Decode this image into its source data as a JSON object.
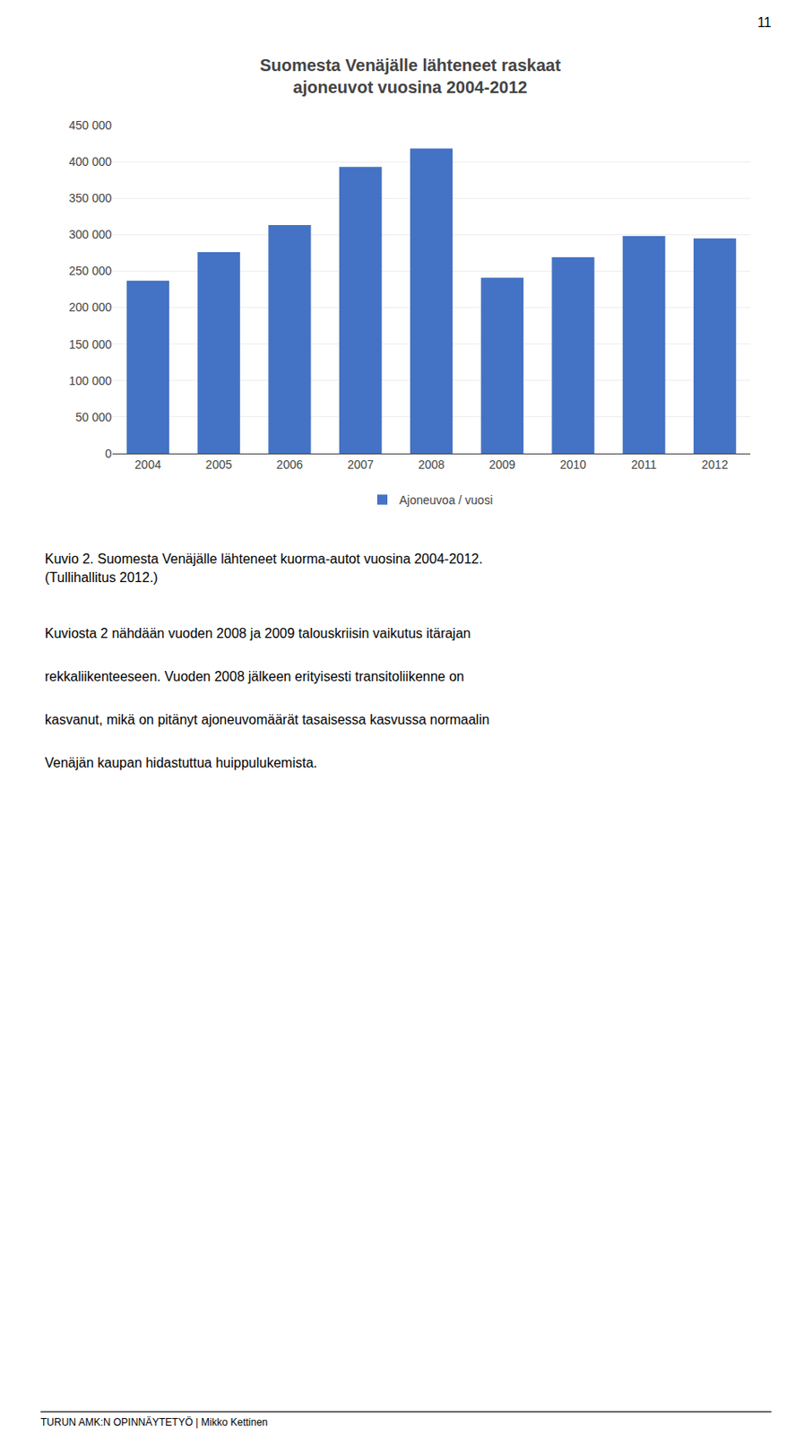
{
  "chart_data": {
    "type": "bar",
    "title": "Suomesta Venäjälle lähteneet raskaat\najoneuvot vuosina 2004-2012",
    "categories": [
      "2004",
      "2005",
      "2006",
      "2007",
      "2008",
      "2009",
      "2010",
      "2011",
      "2012"
    ],
    "series": [
      {
        "name": "Ajoneuvoa / vuosi",
        "color": "#4472C4",
        "values": [
          237000,
          276000,
          313000,
          393000,
          418000,
          241000,
          269000,
          298000,
          295000
        ]
      }
    ],
    "ylim": [
      0,
      450000
    ],
    "yticks": [
      0,
      {
        "value": 50000,
        "label": "50 000"
      },
      {
        "value": 100000,
        "label": "100 000"
      },
      {
        "value": 150000,
        "label": "150 000"
      },
      {
        "value": 200000,
        "label": "200 000"
      },
      {
        "value": 250000,
        "label": "250 000"
      },
      {
        "value": 300000,
        "label": "300 000"
      },
      {
        "value": 350000,
        "label": "350 000"
      },
      {
        "value": 400000,
        "label": "400 000"
      },
      {
        "value": 450000,
        "label": "450 000"
      }
    ],
    "grid": true,
    "legend": "bottom"
  },
  "page_number": "11",
  "caption": [
    "Kuvio 2. Suomesta Venäjälle lähteneet kuorma-autot vuosina 2004-2012.",
    "(Tullihallitus 2012.)"
  ],
  "body": [
    "Kuviosta 2 nähdään vuoden 2008 ja 2009 talouskriisin vaikutus itärajan",
    "rekkaliikenteeseen. Vuoden 2008 jälkeen erityisesti transitoliikenne on",
    "kasvanut, mikä on pitänyt ajoneuvomäärät tasaisessa kasvussa normaalin",
    "Venäjän kaupan hidastuttua huippulukemista."
  ],
  "footer": "TURUN AMK:N OPINNÄYTETYÖ | Mikko Kettinen"
}
